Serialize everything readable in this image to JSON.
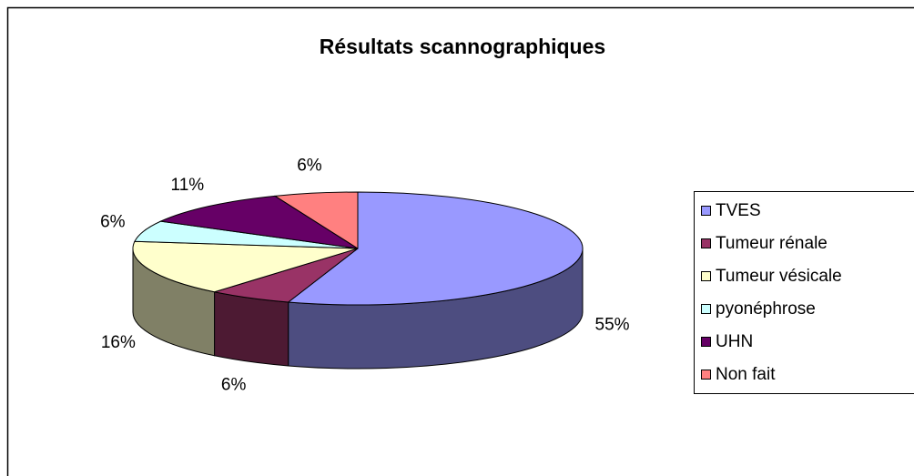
{
  "chart_data": {
    "type": "pie",
    "title": "Résultats scannographiques",
    "categories": [
      "TVES",
      "Tumeur rénale",
      "Tumeur vésicale",
      "pyonéphrose",
      "UHN",
      "Non fait"
    ],
    "values": [
      55,
      6,
      16,
      6,
      11,
      6
    ],
    "colors": [
      "#9999ff",
      "#993366",
      "#ffffcc",
      "#ccffff",
      "#660066",
      "#ff8080"
    ],
    "legend": "right"
  }
}
